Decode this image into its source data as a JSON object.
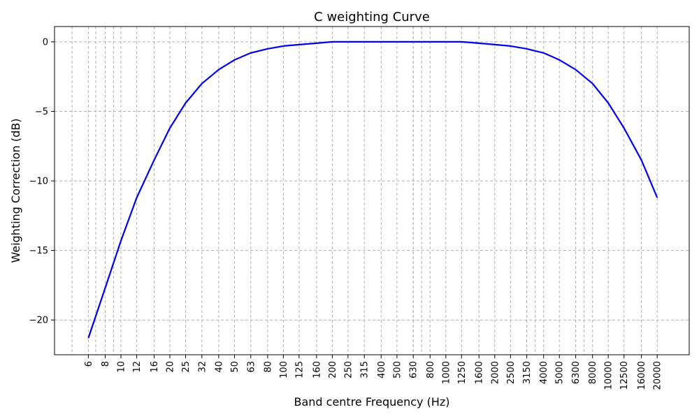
{
  "chart_data": {
    "type": "line",
    "title": "C weighting Curve",
    "xlabel": "Band centre Frequency (Hz)",
    "ylabel": "Weighting Correction (dB)",
    "ylim": [
      -22.5,
      1.1
    ],
    "yticks": [
      0,
      -5,
      -10,
      -15,
      -20
    ],
    "ytick_labels": [
      "0",
      "−5",
      "−10",
      "−15",
      "−20"
    ],
    "grid": true,
    "x_scale": "log",
    "xlim": [
      3.9,
      31500
    ],
    "xtick_labels": [
      "6",
      "8",
      "10",
      "12",
      "16",
      "20",
      "25",
      "32",
      "40",
      "50",
      "63",
      "80",
      "100",
      "125",
      "160",
      "200",
      "250",
      "315",
      "400",
      "500",
      "630",
      "800",
      "1000",
      "1250",
      "1600",
      "2000",
      "2500",
      "3150",
      "4000",
      "5000",
      "6300",
      "8000",
      "10000",
      "12500",
      "16000",
      "20000"
    ],
    "xtick_values": [
      6.3,
      8,
      10,
      12.5,
      16,
      20,
      25,
      31.5,
      40,
      50,
      63,
      80,
      100,
      125,
      160,
      200,
      250,
      315,
      400,
      500,
      630,
      800,
      1000,
      1250,
      1600,
      2000,
      2500,
      3150,
      4000,
      5000,
      6300,
      8000,
      10000,
      12500,
      16000,
      20000
    ],
    "minor_grid_x": [
      5,
      7,
      9,
      630,
      710,
      3150,
      3550,
      6300,
      7100
    ],
    "series": [
      {
        "color": "#0000ee",
        "x": [
          6.3,
          8,
          10,
          12.5,
          16,
          20,
          25,
          31.5,
          40,
          50,
          63,
          80,
          100,
          125,
          160,
          200,
          250,
          315,
          400,
          500,
          630,
          800,
          1000,
          1250,
          1600,
          2000,
          2500,
          3150,
          4000,
          5000,
          6300,
          8000,
          10000,
          12500,
          16000,
          20000
        ],
        "values": [
          -21.3,
          -17.7,
          -14.3,
          -11.2,
          -8.5,
          -6.2,
          -4.4,
          -3.0,
          -2.0,
          -1.3,
          -0.8,
          -0.5,
          -0.3,
          -0.2,
          -0.1,
          0,
          0,
          0,
          0,
          0,
          0,
          0,
          0,
          0,
          -0.1,
          -0.2,
          -0.3,
          -0.5,
          -0.8,
          -1.3,
          -2.0,
          -3.0,
          -4.4,
          -6.2,
          -8.5,
          -11.2
        ]
      }
    ]
  }
}
